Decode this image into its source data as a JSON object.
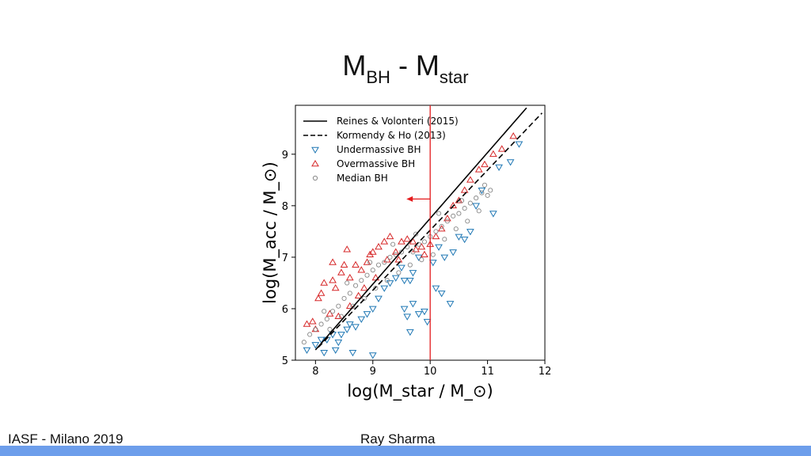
{
  "slide": {
    "title_main_1": "M",
    "title_sub_1": "BH",
    "title_sep": " - M",
    "title_sub_2": "star",
    "footer_left": "IASF - Milano 2019",
    "footer_center": "Ray Sharma",
    "accent_bar_color": "#6d9eeb"
  },
  "chart_data": {
    "type": "scatter",
    "title": "",
    "xlabel": "log(M_star / M_⊙)",
    "ylabel": "log(M_acc / M_⊙)",
    "xlim": [
      7.65,
      12.0
    ],
    "ylim": [
      5.0,
      9.95
    ],
    "xticks": [
      "8",
      "9",
      "10",
      "11",
      "12"
    ],
    "yticks": [
      "5",
      "6",
      "7",
      "8",
      "9"
    ],
    "grid": false,
    "legend_position": "top-left",
    "vertical_line": {
      "x": 10.0,
      "color": "#e41a1c",
      "arrow_at_y": 8.13,
      "arrow_direction": "left"
    },
    "lines": [
      {
        "name": "Reines & Volonteri (2015)",
        "style": "solid",
        "color": "#000000",
        "x": [
          8.0,
          11.68
        ],
        "y": [
          5.2,
          9.9
        ]
      },
      {
        "name": "Kormendy & Ho (2013)",
        "style": "dashed",
        "color": "#000000",
        "x": [
          8.05,
          11.95
        ],
        "y": [
          5.25,
          9.8
        ]
      }
    ],
    "series": [
      {
        "name": "Undermassive BH",
        "marker": "triangle-down",
        "color": "#1f77b4",
        "points": [
          [
            7.85,
            5.2
          ],
          [
            8.0,
            5.3
          ],
          [
            8.1,
            5.4
          ],
          [
            8.2,
            5.4
          ],
          [
            8.3,
            5.5
          ],
          [
            8.15,
            5.15
          ],
          [
            8.35,
            5.2
          ],
          [
            8.45,
            5.5
          ],
          [
            8.55,
            5.6
          ],
          [
            8.6,
            5.7
          ],
          [
            8.7,
            5.65
          ],
          [
            8.65,
            5.15
          ],
          [
            8.8,
            5.8
          ],
          [
            8.9,
            5.9
          ],
          [
            9.0,
            6.0
          ],
          [
            9.1,
            6.2
          ],
          [
            9.2,
            6.4
          ],
          [
            9.3,
            6.5
          ],
          [
            9.4,
            6.6
          ],
          [
            9.5,
            6.8
          ],
          [
            9.55,
            6.55
          ],
          [
            9.65,
            6.55
          ],
          [
            9.7,
            6.7
          ],
          [
            9.8,
            7.0
          ],
          [
            9.55,
            6.0
          ],
          [
            9.6,
            5.85
          ],
          [
            9.65,
            5.55
          ],
          [
            9.7,
            6.1
          ],
          [
            9.8,
            5.9
          ],
          [
            9.9,
            5.95
          ],
          [
            9.95,
            5.75
          ],
          [
            10.1,
            6.4
          ],
          [
            10.2,
            6.3
          ],
          [
            10.35,
            6.1
          ],
          [
            10.05,
            6.9
          ],
          [
            10.15,
            7.2
          ],
          [
            10.25,
            7.0
          ],
          [
            10.4,
            7.1
          ],
          [
            10.5,
            7.4
          ],
          [
            10.6,
            7.35
          ],
          [
            10.7,
            7.5
          ],
          [
            10.8,
            8.0
          ],
          [
            10.9,
            8.3
          ],
          [
            11.1,
            7.85
          ],
          [
            11.2,
            8.75
          ],
          [
            11.4,
            8.85
          ],
          [
            11.55,
            9.2
          ],
          [
            9.0,
            5.1
          ],
          [
            8.4,
            5.35
          ]
        ]
      },
      {
        "name": "Overmassive BH",
        "marker": "triangle-up",
        "color": "#d62728",
        "points": [
          [
            7.85,
            5.7
          ],
          [
            7.95,
            5.75
          ],
          [
            8.05,
            6.2
          ],
          [
            8.1,
            6.3
          ],
          [
            8.15,
            6.5
          ],
          [
            8.3,
            6.55
          ],
          [
            8.35,
            6.4
          ],
          [
            8.45,
            6.7
          ],
          [
            8.5,
            6.85
          ],
          [
            8.6,
            6.6
          ],
          [
            8.7,
            6.85
          ],
          [
            8.8,
            6.75
          ],
          [
            8.9,
            6.9
          ],
          [
            9.0,
            7.1
          ],
          [
            9.1,
            7.2
          ],
          [
            9.2,
            7.3
          ],
          [
            9.3,
            7.4
          ],
          [
            9.4,
            7.1
          ],
          [
            9.5,
            7.3
          ],
          [
            9.6,
            7.35
          ],
          [
            9.7,
            7.3
          ],
          [
            9.75,
            7.15
          ],
          [
            9.85,
            7.2
          ],
          [
            9.9,
            7.05
          ],
          [
            10.0,
            7.25
          ],
          [
            10.1,
            7.4
          ],
          [
            10.2,
            7.55
          ],
          [
            10.3,
            7.75
          ],
          [
            10.4,
            8.0
          ],
          [
            10.5,
            8.1
          ],
          [
            10.6,
            8.3
          ],
          [
            10.7,
            8.5
          ],
          [
            10.85,
            8.7
          ],
          [
            10.95,
            8.8
          ],
          [
            11.1,
            9.0
          ],
          [
            11.25,
            9.1
          ],
          [
            11.45,
            9.35
          ],
          [
            8.25,
            5.9
          ],
          [
            8.4,
            5.85
          ],
          [
            8.6,
            6.05
          ],
          [
            8.75,
            6.25
          ],
          [
            8.85,
            6.4
          ],
          [
            9.05,
            6.6
          ],
          [
            9.25,
            6.95
          ],
          [
            9.45,
            6.95
          ],
          [
            8.0,
            5.6
          ],
          [
            8.3,
            6.9
          ],
          [
            8.55,
            7.15
          ],
          [
            8.95,
            7.05
          ]
        ]
      },
      {
        "name": "Median BH",
        "marker": "circle",
        "color": "#888888",
        "points": [
          [
            7.8,
            5.35
          ],
          [
            7.9,
            5.5
          ],
          [
            8.0,
            5.6
          ],
          [
            8.1,
            5.7
          ],
          [
            8.2,
            5.8
          ],
          [
            8.3,
            5.95
          ],
          [
            8.4,
            6.05
          ],
          [
            8.5,
            6.2
          ],
          [
            8.6,
            6.3
          ],
          [
            8.7,
            6.45
          ],
          [
            8.8,
            6.55
          ],
          [
            8.9,
            6.65
          ],
          [
            9.0,
            6.75
          ],
          [
            9.1,
            6.85
          ],
          [
            9.2,
            6.9
          ],
          [
            9.3,
            7.0
          ],
          [
            9.4,
            7.05
          ],
          [
            9.5,
            7.1
          ],
          [
            9.6,
            7.2
          ],
          [
            9.7,
            7.1
          ],
          [
            9.8,
            7.25
          ],
          [
            9.9,
            7.3
          ],
          [
            10.0,
            7.4
          ],
          [
            10.1,
            7.5
          ],
          [
            10.2,
            7.6
          ],
          [
            10.3,
            7.7
          ],
          [
            10.4,
            7.8
          ],
          [
            10.5,
            7.85
          ],
          [
            10.6,
            7.95
          ],
          [
            10.7,
            8.05
          ],
          [
            10.8,
            8.15
          ],
          [
            10.9,
            8.25
          ],
          [
            11.0,
            8.2
          ],
          [
            11.05,
            8.3
          ],
          [
            8.25,
            5.6
          ],
          [
            8.45,
            5.85
          ],
          [
            8.65,
            6.05
          ],
          [
            8.85,
            6.2
          ],
          [
            9.05,
            6.4
          ],
          [
            9.25,
            6.55
          ],
          [
            9.45,
            6.7
          ],
          [
            9.65,
            6.85
          ],
          [
            9.85,
            6.95
          ],
          [
            10.05,
            7.05
          ],
          [
            10.25,
            7.35
          ],
          [
            10.45,
            7.55
          ],
          [
            10.65,
            7.7
          ],
          [
            10.85,
            7.9
          ],
          [
            8.15,
            5.95
          ],
          [
            8.55,
            6.5
          ],
          [
            8.95,
            6.9
          ],
          [
            9.35,
            7.25
          ],
          [
            9.75,
            7.45
          ],
          [
            10.15,
            7.85
          ],
          [
            10.55,
            8.1
          ],
          [
            10.95,
            8.4
          ]
        ]
      }
    ]
  }
}
